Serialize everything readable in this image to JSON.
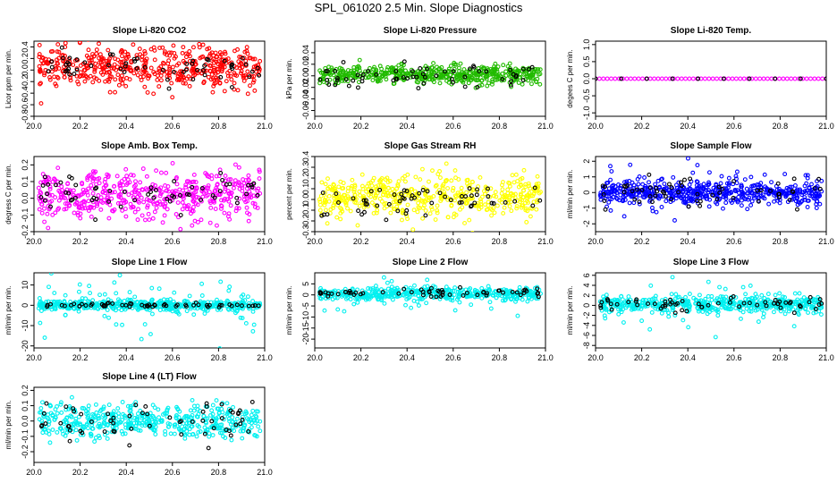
{
  "figure": {
    "title": "SPL_061020  2.5 Min. Slope Diagnostics"
  },
  "colors": {
    "red": "#ff0000",
    "green": "#22bb00",
    "magenta": "#ff00ff",
    "yellow": "#ffff00",
    "blue": "#0000ff",
    "cyan": "#00f0f0",
    "black": "#000000"
  },
  "chart_data": [
    {
      "type": "scatter",
      "title": "Slope Li-820 CO2",
      "ylabel": "Licor ppm per min.",
      "xlim": [
        20.0,
        21.0
      ],
      "ylim": [
        -0.8,
        0.5
      ],
      "xticks": [
        20.0,
        20.2,
        20.4,
        20.6,
        20.8,
        21.0
      ],
      "xtick_labels": [
        "20.0",
        "20.2",
        "20.4",
        "20.6",
        "20.8",
        "21.0"
      ],
      "yticks": [
        -0.8,
        -0.6,
        -0.4,
        -0.2,
        0.0,
        0.2,
        0.4
      ],
      "ytick_labels": [
        "-0.8",
        "-0.6",
        "-0.4",
        "-0.2",
        "0.0",
        "0.2",
        "0.4"
      ],
      "series": [
        {
          "name": "all",
          "color": "red",
          "center": 0.05,
          "spread": 0.18,
          "n": 500
        },
        {
          "name": "subset",
          "color": "black",
          "center": 0.02,
          "spread": 0.12,
          "n": 60
        }
      ]
    },
    {
      "type": "scatter",
      "title": "Slope Li-820 Pressure",
      "ylabel": "kPa per min.",
      "xlim": [
        20.0,
        21.0
      ],
      "ylim": [
        -0.07,
        0.06
      ],
      "xticks": [
        20.0,
        20.2,
        20.4,
        20.6,
        20.8,
        21.0
      ],
      "xtick_labels": [
        "20.0",
        "20.2",
        "20.4",
        "20.6",
        "20.8",
        "21.0"
      ],
      "yticks": [
        -0.06,
        -0.04,
        -0.02,
        0.0,
        0.02,
        0.04
      ],
      "ytick_labels": [
        "-0.06",
        "-0.04",
        "-0.02",
        "0.00",
        "0.02",
        "0.04"
      ],
      "series": [
        {
          "name": "all",
          "color": "green",
          "center": 0.002,
          "spread": 0.008,
          "n": 500
        },
        {
          "name": "subset",
          "color": "black",
          "center": -0.002,
          "spread": 0.012,
          "n": 60
        }
      ]
    },
    {
      "type": "scatter",
      "title": "Slope Li-820 Temp.",
      "ylabel": "degees C per min.",
      "xlim": [
        20.0,
        21.0
      ],
      "ylim": [
        -1.1,
        1.1
      ],
      "xticks": [
        20.0,
        20.2,
        20.4,
        20.6,
        20.8,
        21.0
      ],
      "xtick_labels": [
        "20.0",
        "20.2",
        "20.4",
        "20.6",
        "20.8",
        "21.0"
      ],
      "yticks": [
        -1.0,
        -0.5,
        0.0,
        0.5,
        1.0
      ],
      "ytick_labels": [
        "-1.0",
        "-0.5",
        "0.0",
        "0.5",
        "1.0"
      ],
      "series": [
        {
          "name": "all",
          "color": "magenta",
          "center": 0.0,
          "spread": 0.0,
          "n": 60
        },
        {
          "name": "subset",
          "color": "black",
          "center": 0.0,
          "spread": 0.0,
          "n": 10
        }
      ]
    },
    {
      "type": "scatter",
      "title": "Slope Amb. Box Temp.",
      "ylabel": "degress C per min.",
      "xlim": [
        20.0,
        21.0
      ],
      "ylim": [
        -0.2,
        0.25
      ],
      "xticks": [
        20.0,
        20.2,
        20.4,
        20.6,
        20.8,
        21.0
      ],
      "xtick_labels": [
        "20.0",
        "20.2",
        "20.4",
        "20.6",
        "20.8",
        "21.0"
      ],
      "yticks": [
        -0.2,
        -0.1,
        0.0,
        0.1,
        0.2
      ],
      "ytick_labels": [
        "-0.2",
        "-0.1",
        "0.0",
        "0.1",
        "0.2"
      ],
      "series": [
        {
          "name": "all",
          "color": "magenta",
          "center": 0.02,
          "spread": 0.07,
          "n": 500
        },
        {
          "name": "subset",
          "color": "black",
          "center": 0.02,
          "spread": 0.06,
          "n": 60
        }
      ]
    },
    {
      "type": "scatter",
      "title": "Slope Gas Stream RH",
      "ylabel": "percent per min.",
      "xlim": [
        20.0,
        21.0
      ],
      "ylim": [
        -0.3,
        0.4
      ],
      "xticks": [
        20.0,
        20.2,
        20.4,
        20.6,
        20.8,
        21.0
      ],
      "xtick_labels": [
        "20.0",
        "20.2",
        "20.4",
        "20.6",
        "20.8",
        "21.0"
      ],
      "yticks": [
        -0.3,
        -0.2,
        -0.1,
        0.0,
        0.1,
        0.2,
        0.3,
        0.4
      ],
      "ytick_labels": [
        "-0.3",
        "-0.2",
        "-0.1",
        "0.0",
        "0.1",
        "0.2",
        "0.3",
        "0.4"
      ],
      "series": [
        {
          "name": "all",
          "color": "yellow",
          "center": 0.02,
          "spread": 0.1,
          "n": 500
        },
        {
          "name": "subset",
          "color": "black",
          "center": 0.0,
          "spread": 0.08,
          "n": 60
        }
      ]
    },
    {
      "type": "scatter",
      "title": "Slope Sample Flow",
      "ylabel": "ml/min per min.",
      "xlim": [
        20.0,
        21.0
      ],
      "ylim": [
        -2.5,
        2.3
      ],
      "xticks": [
        20.0,
        20.2,
        20.4,
        20.6,
        20.8,
        21.0
      ],
      "xtick_labels": [
        "20.0",
        "20.2",
        "20.4",
        "20.6",
        "20.8",
        "21.0"
      ],
      "yticks": [
        -2,
        -1,
        0,
        1,
        2
      ],
      "ytick_labels": [
        "-2",
        "-1",
        "0",
        "1",
        "2"
      ],
      "series": [
        {
          "name": "all",
          "color": "blue",
          "center": 0.0,
          "spread": 0.35,
          "n": 500
        },
        {
          "name": "outliers",
          "color": "blue",
          "center": 0.0,
          "spread": 1.1,
          "n": 60
        },
        {
          "name": "subset",
          "color": "black",
          "center": 0.0,
          "spread": 0.5,
          "n": 60
        }
      ]
    },
    {
      "type": "scatter",
      "title": "Slope Line 1 Flow",
      "ylabel": "ml/min per min.",
      "xlim": [
        20.0,
        21.0
      ],
      "ylim": [
        -21,
        16
      ],
      "xticks": [
        20.0,
        20.2,
        20.4,
        20.6,
        20.8,
        21.0
      ],
      "xtick_labels": [
        "20.0",
        "20.2",
        "20.4",
        "20.6",
        "20.8",
        "21.0"
      ],
      "yticks": [
        -20,
        -10,
        0,
        10
      ],
      "ytick_labels": [
        "-20",
        "-10",
        "0",
        "10"
      ],
      "series": [
        {
          "name": "all",
          "color": "cyan",
          "center": 0.0,
          "spread": 1.2,
          "n": 450
        },
        {
          "name": "outliers",
          "color": "cyan",
          "center": 0.0,
          "spread": 7,
          "n": 80
        },
        {
          "name": "subset",
          "color": "black",
          "center": 0.0,
          "spread": 0.5,
          "n": 60
        }
      ]
    },
    {
      "type": "scatter",
      "title": "Slope Line 2 Flow",
      "ylabel": "ml/min per min.",
      "xlim": [
        20.0,
        21.0
      ],
      "ylim": [
        -24,
        10
      ],
      "xticks": [
        20.0,
        20.2,
        20.4,
        20.6,
        20.8,
        21.0
      ],
      "xtick_labels": [
        "20.0",
        "20.2",
        "20.4",
        "20.6",
        "20.8",
        "21.0"
      ],
      "yticks": [
        -20,
        -15,
        -10,
        -5,
        0,
        5
      ],
      "ytick_labels": [
        "-20",
        "-15",
        "-10",
        "-5",
        "0",
        "5"
      ],
      "series": [
        {
          "name": "all",
          "color": "cyan",
          "center": 0.5,
          "spread": 1.5,
          "n": 450
        },
        {
          "name": "outliers",
          "color": "cyan",
          "center": 0.0,
          "spread": 6,
          "n": 40
        },
        {
          "name": "subset",
          "color": "black",
          "center": 1.0,
          "spread": 0.8,
          "n": 60
        }
      ]
    },
    {
      "type": "scatter",
      "title": "Slope Line 3 Flow",
      "ylabel": "ml/min per min.",
      "xlim": [
        20.0,
        21.0
      ],
      "ylim": [
        -8.5,
        6.5
      ],
      "xticks": [
        20.0,
        20.2,
        20.4,
        20.6,
        20.8,
        21.0
      ],
      "xtick_labels": [
        "20.0",
        "20.2",
        "20.4",
        "20.6",
        "20.8",
        "21.0"
      ],
      "yticks": [
        -8,
        -6,
        -4,
        -2,
        0,
        2,
        4,
        6
      ],
      "ytick_labels": [
        "-8",
        "-6",
        "-4",
        "-2",
        "0",
        "2",
        "4",
        "6"
      ],
      "series": [
        {
          "name": "all",
          "color": "cyan",
          "center": 0.2,
          "spread": 0.8,
          "n": 500
        },
        {
          "name": "outliers",
          "color": "cyan",
          "center": 0.0,
          "spread": 2.5,
          "n": 40
        },
        {
          "name": "subset",
          "color": "black",
          "center": 0.2,
          "spread": 0.8,
          "n": 60
        }
      ]
    },
    {
      "type": "scatter",
      "title": "Slope Line 4 (LT) Flow",
      "ylabel": "ml/min per min.",
      "xlim": [
        20.0,
        21.0
      ],
      "ylim": [
        -0.27,
        0.22
      ],
      "xticks": [
        20.0,
        20.2,
        20.4,
        20.6,
        20.8,
        21.0
      ],
      "xtick_labels": [
        "20.0",
        "20.2",
        "20.4",
        "20.6",
        "20.8",
        "21.0"
      ],
      "yticks": [
        -0.2,
        -0.1,
        0.0,
        0.1,
        0.2
      ],
      "ytick_labels": [
        "-0.2",
        "-0.1",
        "0.0",
        "0.1",
        "0.2"
      ],
      "series": [
        {
          "name": "all",
          "color": "cyan",
          "center": 0.0,
          "spread": 0.055,
          "n": 500
        },
        {
          "name": "subset",
          "color": "black",
          "center": 0.0,
          "spread": 0.06,
          "n": 60
        }
      ]
    }
  ]
}
